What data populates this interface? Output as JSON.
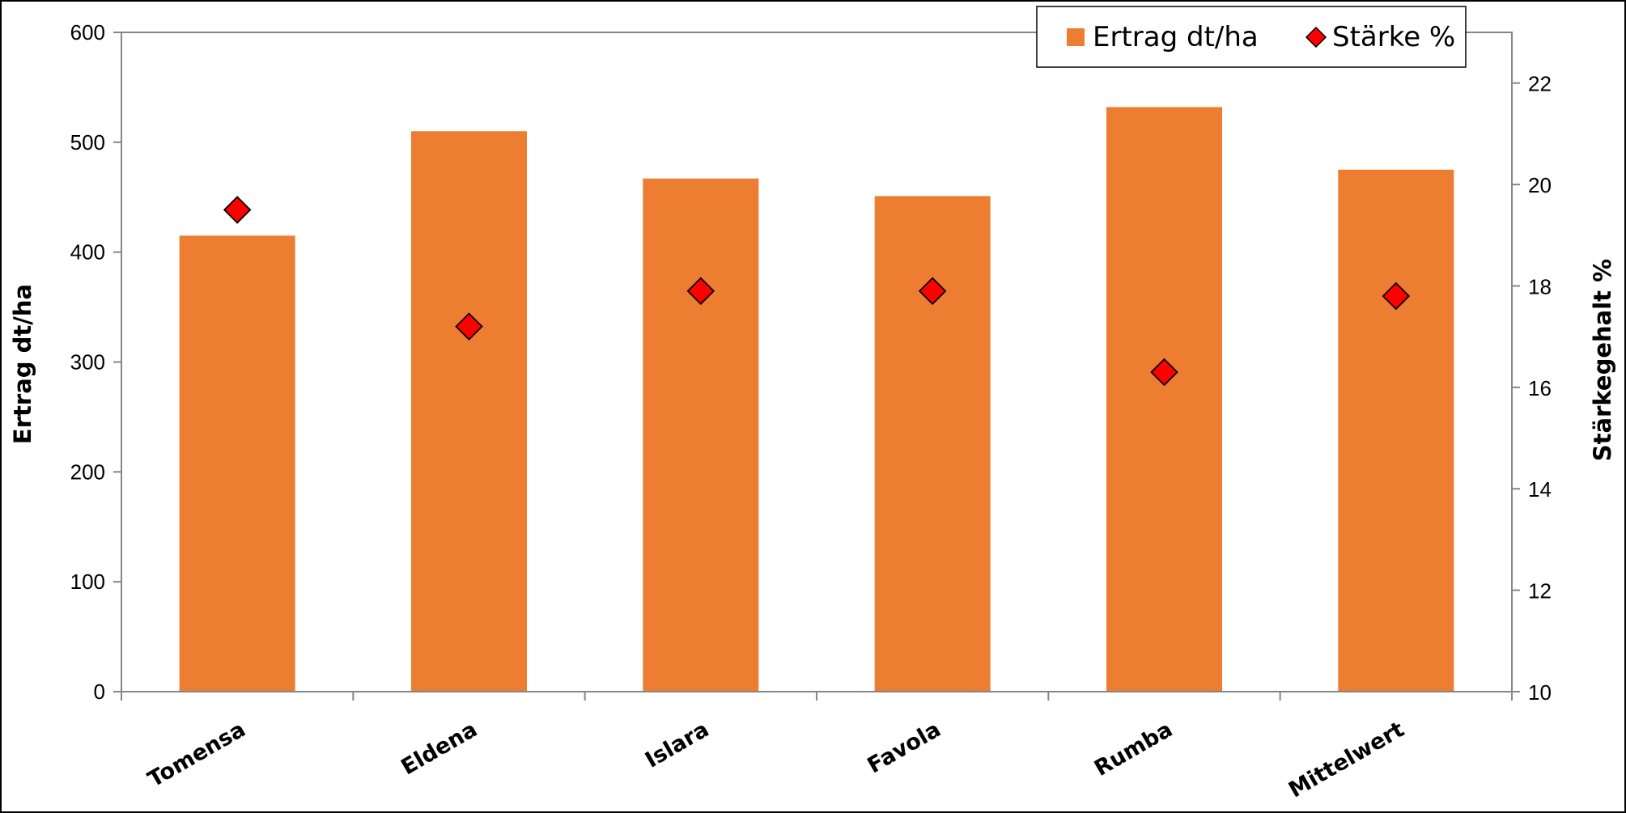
{
  "chart_data": {
    "type": "bar",
    "categories": [
      "Tomensa",
      "Eldena",
      "Islara",
      "Favola",
      "Rumba",
      "Mittelwert"
    ],
    "series": [
      {
        "name": "Ertrag dt/ha",
        "kind": "bar",
        "axis": "left",
        "color": "#ed7d31",
        "values": [
          415,
          510,
          467,
          451,
          532,
          475
        ]
      },
      {
        "name": "Stärke %",
        "kind": "marker",
        "marker": "diamond",
        "axis": "right",
        "color": "#ff0000",
        "values": [
          19.5,
          17.2,
          17.9,
          17.9,
          16.3,
          17.8
        ]
      }
    ],
    "y_left": {
      "label": "Ertrag dt/ha",
      "min": 0,
      "max": 600,
      "ticks": [
        0,
        100,
        200,
        300,
        400,
        500,
        600
      ]
    },
    "y_right": {
      "label": "Stärkegehalt %",
      "min": 10,
      "max": 23,
      "ticks": [
        10,
        12,
        14,
        16,
        18,
        20,
        22
      ]
    },
    "xlabel": "",
    "legend_position": "top-right",
    "grid": false
  }
}
